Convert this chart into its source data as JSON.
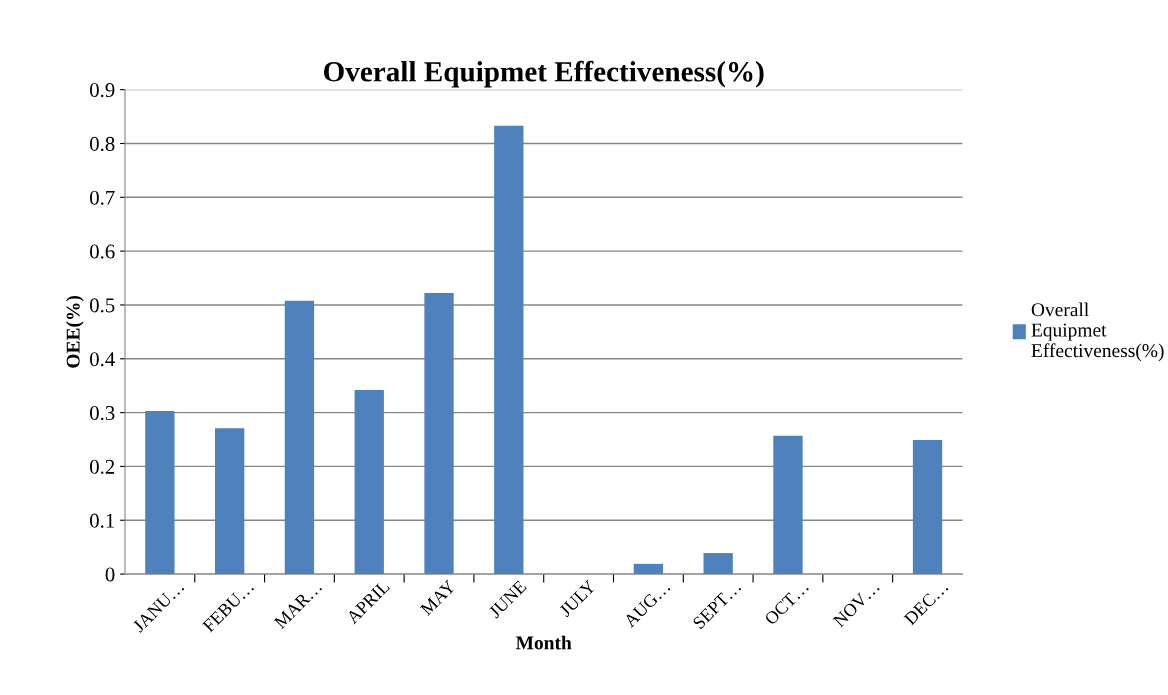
{
  "chart_data": {
    "type": "bar",
    "title": "Overall Equipmet Effectiveness(%)",
    "xlabel": "Month",
    "ylabel": "OEE(%)",
    "categories": [
      "JANU…",
      "FEBU…",
      "MAR…",
      "APRIL",
      "MAY",
      "JUNE",
      "JULY",
      "AUG…",
      "SEPT…",
      "OCT…",
      "NOV…",
      "DEC…"
    ],
    "series": [
      {
        "name": "Overall Equipmet Effectiveness(%)",
        "color": "#4f81bd",
        "values": [
          0.303,
          0.271,
          0.508,
          0.342,
          0.522,
          0.833,
          0,
          0.019,
          0.039,
          0.257,
          0,
          0.249
        ]
      }
    ],
    "ylim": [
      0,
      0.9
    ],
    "yticks": [
      0,
      0.1,
      0.2,
      0.3,
      0.4,
      0.5,
      0.6,
      0.7,
      0.8,
      0.9
    ],
    "grid": "y",
    "legend": "right"
  }
}
